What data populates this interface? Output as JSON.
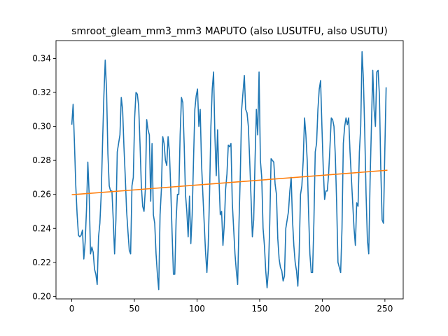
{
  "chart_data": {
    "type": "line",
    "title": "smroot_gleam_mm3_mm3 MAPUTO (also LUSUTFU, also USUTU)",
    "xlabel": "",
    "ylabel": "",
    "xlim": [
      -12.6,
      264.6
    ],
    "ylim": [
      0.1985,
      0.3505
    ],
    "xticks": [
      0,
      50,
      100,
      150,
      200,
      250
    ],
    "yticks": [
      0.2,
      0.22,
      0.24,
      0.26,
      0.28,
      0.3,
      0.32,
      0.34
    ],
    "ytick_labels": [
      "0.20",
      "0.22",
      "0.24",
      "0.26",
      "0.28",
      "0.30",
      "0.32",
      "0.34"
    ],
    "grid": false,
    "series": [
      {
        "color": "#1f77b4",
        "points": [
          [
            0,
            0.301
          ],
          [
            1,
            0.313
          ],
          [
            2,
            0.29
          ],
          [
            3,
            0.265
          ],
          [
            4,
            0.248
          ],
          [
            5,
            0.236
          ],
          [
            6,
            0.235
          ],
          [
            7,
            0.236
          ],
          [
            8,
            0.239
          ],
          [
            9,
            0.222
          ],
          [
            10,
            0.232
          ],
          [
            11,
            0.251
          ],
          [
            12,
            0.279
          ],
          [
            13,
            0.26
          ],
          [
            14,
            0.225
          ],
          [
            15,
            0.229
          ],
          [
            16,
            0.226
          ],
          [
            17,
            0.216
          ],
          [
            18,
            0.213
          ],
          [
            19,
            0.207
          ],
          [
            20,
            0.235
          ],
          [
            21,
            0.243
          ],
          [
            22,
            0.26
          ],
          [
            23,
            0.29
          ],
          [
            24,
            0.318
          ],
          [
            25,
            0.339
          ],
          [
            26,
            0.321
          ],
          [
            27,
            0.284
          ],
          [
            28,
            0.265
          ],
          [
            29,
            0.262
          ],
          [
            30,
            0.262
          ],
          [
            31,
            0.245
          ],
          [
            32,
            0.225
          ],
          [
            33,
            0.245
          ],
          [
            34,
            0.285
          ],
          [
            35,
            0.29
          ],
          [
            36,
            0.295
          ],
          [
            37,
            0.317
          ],
          [
            38,
            0.31
          ],
          [
            39,
            0.288
          ],
          [
            40,
            0.27
          ],
          [
            41,
            0.25
          ],
          [
            42,
            0.238
          ],
          [
            43,
            0.227
          ],
          [
            44,
            0.225
          ],
          [
            45,
            0.265
          ],
          [
            46,
            0.27
          ],
          [
            47,
            0.305
          ],
          [
            48,
            0.32
          ],
          [
            49,
            0.319
          ],
          [
            50,
            0.312
          ],
          [
            51,
            0.29
          ],
          [
            52,
            0.265
          ],
          [
            53,
            0.253
          ],
          [
            54,
            0.25
          ],
          [
            55,
            0.263
          ],
          [
            56,
            0.304
          ],
          [
            57,
            0.298
          ],
          [
            58,
            0.295
          ],
          [
            59,
            0.256
          ],
          [
            60,
            0.29
          ],
          [
            61,
            0.248
          ],
          [
            62,
            0.243
          ],
          [
            63,
            0.225
          ],
          [
            64,
            0.213
          ],
          [
            65,
            0.204
          ],
          [
            66,
            0.248
          ],
          [
            67,
            0.263
          ],
          [
            68,
            0.294
          ],
          [
            69,
            0.29
          ],
          [
            70,
            0.28
          ],
          [
            71,
            0.277
          ],
          [
            72,
            0.294
          ],
          [
            73,
            0.285
          ],
          [
            74,
            0.263
          ],
          [
            75,
            0.237
          ],
          [
            76,
            0.213
          ],
          [
            77,
            0.213
          ],
          [
            78,
            0.245
          ],
          [
            79,
            0.26
          ],
          [
            80,
            0.26
          ],
          [
            81,
            0.295
          ],
          [
            82,
            0.317
          ],
          [
            83,
            0.314
          ],
          [
            84,
            0.29
          ],
          [
            85,
            0.26
          ],
          [
            86,
            0.25
          ],
          [
            87,
            0.235
          ],
          [
            88,
            0.259
          ],
          [
            89,
            0.231
          ],
          [
            90,
            0.248
          ],
          [
            91,
            0.28
          ],
          [
            92,
            0.31
          ],
          [
            93,
            0.318
          ],
          [
            94,
            0.322
          ],
          [
            95,
            0.3
          ],
          [
            96,
            0.31
          ],
          [
            97,
            0.278
          ],
          [
            98,
            0.26
          ],
          [
            99,
            0.243
          ],
          [
            100,
            0.226
          ],
          [
            101,
            0.214
          ],
          [
            102,
            0.23
          ],
          [
            103,
            0.26
          ],
          [
            104,
            0.3
          ],
          [
            105,
            0.322
          ],
          [
            106,
            0.332
          ],
          [
            107,
            0.294
          ],
          [
            108,
            0.271
          ],
          [
            109,
            0.298
          ],
          [
            110,
            0.27
          ],
          [
            111,
            0.248
          ],
          [
            112,
            0.25
          ],
          [
            113,
            0.23
          ],
          [
            114,
            0.242
          ],
          [
            115,
            0.263
          ],
          [
            116,
            0.272
          ],
          [
            117,
            0.289
          ],
          [
            118,
            0.288
          ],
          [
            119,
            0.29
          ],
          [
            120,
            0.255
          ],
          [
            121,
            0.24
          ],
          [
            122,
            0.225
          ],
          [
            123,
            0.215
          ],
          [
            124,
            0.207
          ],
          [
            125,
            0.243
          ],
          [
            126,
            0.272
          ],
          [
            127,
            0.31
          ],
          [
            128,
            0.32
          ],
          [
            129,
            0.33
          ],
          [
            130,
            0.31
          ],
          [
            131,
            0.308
          ],
          [
            132,
            0.3
          ],
          [
            133,
            0.28
          ],
          [
            134,
            0.258
          ],
          [
            135,
            0.235
          ],
          [
            136,
            0.245
          ],
          [
            137,
            0.28
          ],
          [
            138,
            0.31
          ],
          [
            139,
            0.295
          ],
          [
            140,
            0.332
          ],
          [
            141,
            0.28
          ],
          [
            142,
            0.27
          ],
          [
            143,
            0.24
          ],
          [
            144,
            0.23
          ],
          [
            145,
            0.215
          ],
          [
            146,
            0.205
          ],
          [
            147,
            0.215
          ],
          [
            148,
            0.243
          ],
          [
            149,
            0.281
          ],
          [
            150,
            0.28
          ],
          [
            151,
            0.279
          ],
          [
            152,
            0.266
          ],
          [
            153,
            0.26
          ],
          [
            154,
            0.234
          ],
          [
            155,
            0.222
          ],
          [
            156,
            0.217
          ],
          [
            157,
            0.215
          ],
          [
            158,
            0.209
          ],
          [
            159,
            0.212
          ],
          [
            160,
            0.24
          ],
          [
            161,
            0.245
          ],
          [
            162,
            0.25
          ],
          [
            163,
            0.262
          ],
          [
            164,
            0.27
          ],
          [
            165,
            0.245
          ],
          [
            166,
            0.23
          ],
          [
            167,
            0.22
          ],
          [
            168,
            0.215
          ],
          [
            169,
            0.206
          ],
          [
            170,
            0.226
          ],
          [
            171,
            0.26
          ],
          [
            172,
            0.265
          ],
          [
            173,
            0.28
          ],
          [
            174,
            0.305
          ],
          [
            175,
            0.295
          ],
          [
            176,
            0.28
          ],
          [
            177,
            0.25
          ],
          [
            178,
            0.225
          ],
          [
            179,
            0.214
          ],
          [
            180,
            0.214
          ],
          [
            181,
            0.244
          ],
          [
            182,
            0.285
          ],
          [
            183,
            0.29
          ],
          [
            184,
            0.31
          ],
          [
            185,
            0.322
          ],
          [
            186,
            0.327
          ],
          [
            187,
            0.3
          ],
          [
            188,
            0.275
          ],
          [
            189,
            0.257
          ],
          [
            190,
            0.262
          ],
          [
            191,
            0.262
          ],
          [
            192,
            0.272
          ],
          [
            193,
            0.288
          ],
          [
            194,
            0.305
          ],
          [
            195,
            0.304
          ],
          [
            196,
            0.3
          ],
          [
            197,
            0.283
          ],
          [
            198,
            0.255
          ],
          [
            199,
            0.22
          ],
          [
            200,
            0.217
          ],
          [
            201,
            0.214
          ],
          [
            202,
            0.24
          ],
          [
            203,
            0.29
          ],
          [
            204,
            0.3
          ],
          [
            205,
            0.305
          ],
          [
            206,
            0.301
          ],
          [
            207,
            0.305
          ],
          [
            208,
            0.285
          ],
          [
            209,
            0.27
          ],
          [
            210,
            0.255
          ],
          [
            211,
            0.24
          ],
          [
            212,
            0.23
          ],
          [
            213,
            0.255
          ],
          [
            214,
            0.253
          ],
          [
            215,
            0.285
          ],
          [
            216,
            0.3
          ],
          [
            217,
            0.344
          ],
          [
            218,
            0.328
          ],
          [
            219,
            0.297
          ],
          [
            220,
            0.26
          ],
          [
            221,
            0.233
          ],
          [
            222,
            0.225
          ],
          [
            223,
            0.268
          ],
          [
            224,
            0.3
          ],
          [
            225,
            0.333
          ],
          [
            226,
            0.31
          ],
          [
            227,
            0.3
          ],
          [
            228,
            0.332
          ],
          [
            229,
            0.333
          ],
          [
            230,
            0.318
          ],
          [
            231,
            0.275
          ],
          [
            232,
            0.245
          ],
          [
            233,
            0.243
          ],
          [
            234,
            0.285
          ],
          [
            235,
            0.323
          ]
        ],
        "x_scale": 1.068
      },
      {
        "color": "#ff7f0e",
        "trend": true,
        "points": [
          [
            0,
            0.2598
          ],
          [
            252,
            0.2742
          ]
        ]
      }
    ]
  }
}
